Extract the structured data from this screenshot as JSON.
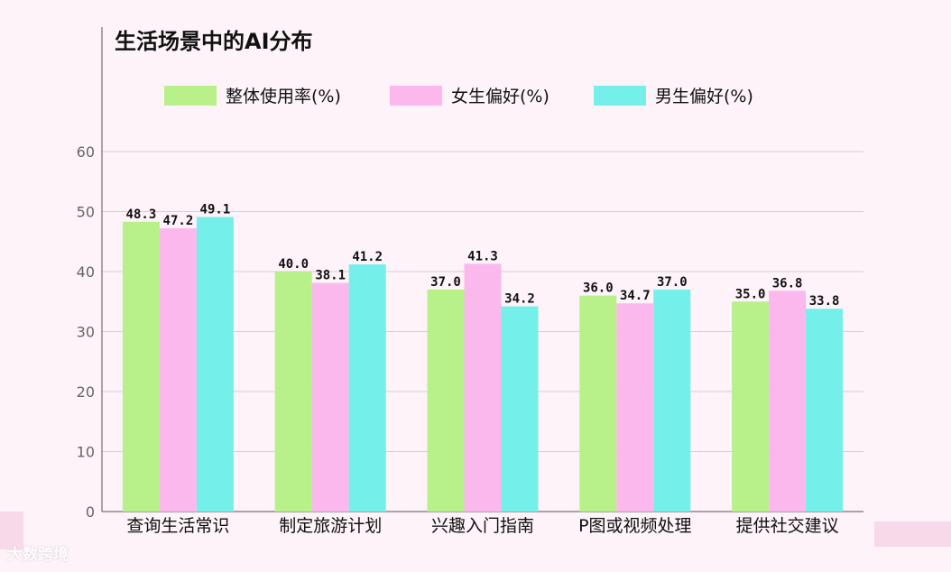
{
  "chart_data": {
    "type": "bar",
    "title": "生活场景中的AI分布",
    "categories": [
      "查询生活常识",
      "制定旅游计划",
      "兴趣入门指南",
      "P图或视频处理",
      "提供社交建议"
    ],
    "series": [
      {
        "name": "整体使用率(%)",
        "values": [
          48.3,
          40.0,
          37.0,
          36.0,
          35.0
        ],
        "labels": [
          "48.3",
          "40.0",
          "37.0",
          "36.0",
          "35.0"
        ],
        "color": "#b8f08a"
      },
      {
        "name": "女生偏好(%)",
        "values": [
          47.2,
          38.1,
          41.3,
          34.7,
          36.8
        ],
        "labels": [
          "47.2",
          "38.1",
          "41.3",
          "34.7",
          "36.8"
        ],
        "color": "#fbb8ec"
      },
      {
        "name": "男生偏好(%)",
        "values": [
          49.1,
          41.2,
          34.2,
          37.0,
          33.8
        ],
        "labels": [
          "49.1",
          "41.2",
          "34.2",
          "37.0",
          "33.8"
        ],
        "color": "#74efea"
      }
    ],
    "ylim": [
      0,
      60
    ],
    "yticks": [
      0,
      10,
      20,
      30,
      40,
      50,
      60
    ],
    "grid": true,
    "legend": "top"
  },
  "watermark": "大数跨境",
  "colors": {
    "background": "#fdf3f8",
    "grid": "#d2d2d2",
    "axis": "#555555",
    "tick_text": "#666666",
    "text": "#111111"
  }
}
